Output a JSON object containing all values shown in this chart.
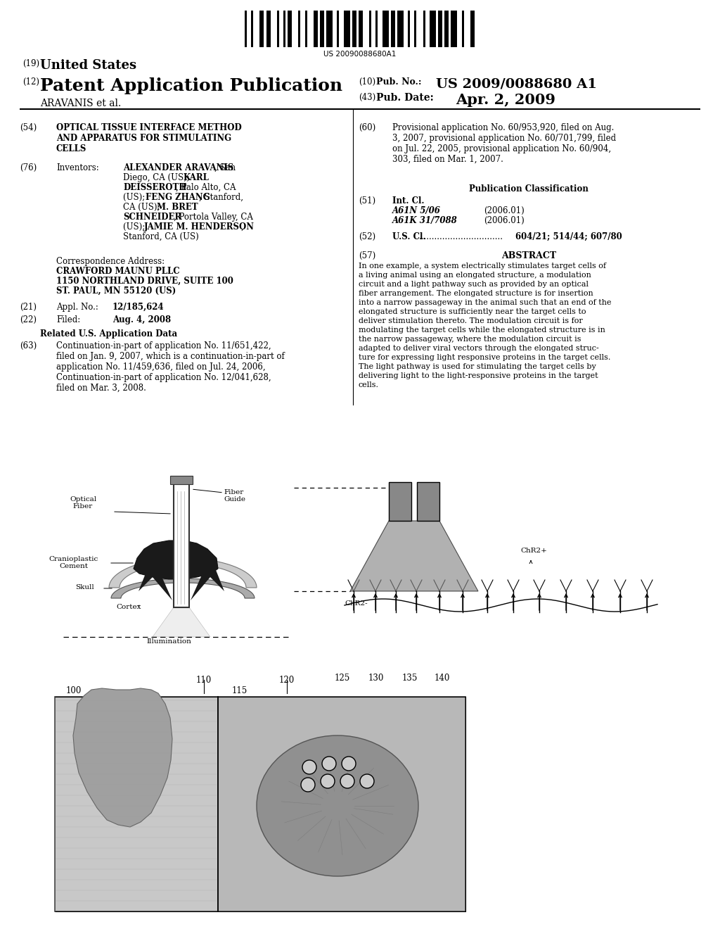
{
  "bg_color": "#ffffff",
  "barcode_text": "US 20090088680A1",
  "hdr19": "(19)",
  "hdr19_text": "United States",
  "hdr12": "(12)",
  "hdr12_text": "Patent Application Publication",
  "applicant": "ARAVANIS et al.",
  "pub_no_num": "(10)",
  "pub_no_label": "Pub. No.:",
  "pub_no_value": "US 2009/0088680 A1",
  "pub_date_num": "(43)",
  "pub_date_label": "Pub. Date:",
  "pub_date_value": "Apr. 2, 2009",
  "f54_num": "(54)",
  "f54_l1": "OPTICAL TISSUE INTERFACE METHOD",
  "f54_l2": "AND APPARATUS FOR STIMULATING",
  "f54_l3": "CELLS",
  "f76_num": "(76)",
  "f76_label": "Inventors:",
  "f76_inv1": "ALEXANDER ARAVANIS",
  "f76_inv1b": ", San",
  "f76_inv2": "Diego, CA (US); ",
  "f76_inv2b": "KARL",
  "f76_inv3": "DEISSEROTH",
  "f76_inv3b": ", Palo Alto, CA",
  "f76_inv4": "(US); ",
  "f76_inv4b": "FENG ZHANG",
  "f76_inv4c": ", Stanford,",
  "f76_inv5": "CA (US); ",
  "f76_inv5b": "M. BRET",
  "f76_inv6": "SCHNEIDER",
  "f76_inv6b": ", Portola Valley, CA",
  "f76_inv7": "(US); ",
  "f76_inv7b": "JAMIE M. HENDERSON",
  "f76_inv7c": ",",
  "f76_inv8": "Stanford, CA (US)",
  "corr_intro": "Correspondence Address:",
  "corr_name": "CRAWFORD MAUNU PLLC",
  "corr_addr1": "1150 NORTHLAND DRIVE, SUITE 100",
  "corr_addr2": "ST. PAUL, MN 55120 (US)",
  "f21_num": "(21)",
  "f21_label": "Appl. No.:",
  "f21_value": "12/185,624",
  "f22_num": "(22)",
  "f22_label": "Filed:",
  "f22_value": "Aug. 4, 2008",
  "related_title": "Related U.S. Application Data",
  "f63_num": "(63)",
  "f63_text": "Continuation-in-part of application No. 11/651,422,\nfiled on Jan. 9, 2007, which is a continuation-in-part of\napplication No. 11/459,636, filed on Jul. 24, 2006,\nContinuation-in-part of application No. 12/041,628,\nfiled on Mar. 3, 2008.",
  "f60_num": "(60)",
  "f60_text": "Provisional application No. 60/953,920, filed on Aug.\n3, 2007, provisional application No. 60/701,799, filed\non Jul. 22, 2005, provisional application No. 60/904,\n303, filed on Mar. 1, 2007.",
  "pub_class_title": "Publication Classification",
  "f51_num": "(51)",
  "f51_label": "Int. Cl.",
  "f51_c1": "A61N 5/06",
  "f51_y1": "(2006.01)",
  "f51_c2": "A61K 31/7088",
  "f51_y2": "(2006.01)",
  "f52_num": "(52)",
  "f52_label": "U.S. Cl.",
  "f52_dots": "................................",
  "f52_value": "604/21; 514/44; 607/80",
  "f57_num": "(57)",
  "f57_title": "ABSTRACT",
  "f57_text1": "In one example, a system electrically stimulates target cells of",
  "f57_text2": "a living animal using an elongated structure, a modulation",
  "f57_text3": "circuit and a light pathway such as provided by an optical",
  "f57_text4": "fiber arrangement. The elongated structure is for insertion",
  "f57_text5": "into a narrow passageway in the animal such that an end of the",
  "f57_text6": "elongated structure is sufficiently near the target cells to",
  "f57_text7": "deliver stimulation thereto. The modulation circuit is for",
  "f57_text8": "modulating the target cells while the elongated structure is in",
  "f57_text9": "the narrow passageway, where the modulation circuit is",
  "f57_text10": "adapted to deliver viral vectors through the elongated struc-",
  "f57_text11": "ture for expressing light responsive proteins in the target cells.",
  "f57_text12": "The light pathway is used for stimulating the target cells by",
  "f57_text13": "delivering light to the light-responsive proteins in the target",
  "f57_text14": "cells.",
  "lbl_optical_fiber": "Optical\nFiber",
  "lbl_fiber_guide": "Fiber\nGuide",
  "lbl_cranioplastic": "Cranioplastic\nCement",
  "lbl_skull": "Skull",
  "lbl_cortex": "Cortex",
  "lbl_illumination": "Illumination",
  "lbl_chr2minus": "ChR2-",
  "lbl_chr2plus": "ChR2+",
  "lbl_100": "100",
  "lbl_110": "110",
  "lbl_115": "115",
  "lbl_120": "120",
  "lbl_125": "125",
  "lbl_130": "130",
  "lbl_135": "135",
  "lbl_140": "140"
}
